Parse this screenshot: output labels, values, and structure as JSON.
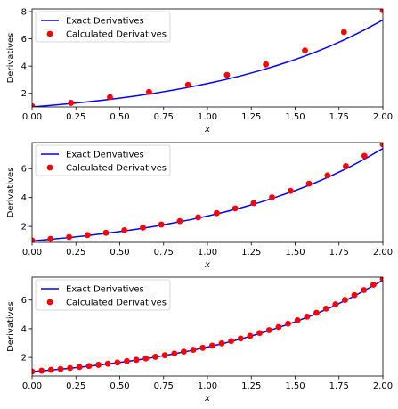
{
  "chart_data": [
    {
      "type": "line",
      "xlabel": "x",
      "ylabel": "Derivatives",
      "xlim": [
        0,
        2
      ],
      "ylim": [
        1.0,
        8.2
      ],
      "xticks": [
        "0.00",
        "0.25",
        "0.50",
        "0.75",
        "1.00",
        "1.25",
        "1.50",
        "1.75",
        "2.00"
      ],
      "xtick_values": [
        0,
        0.25,
        0.5,
        0.75,
        1.0,
        1.25,
        1.5,
        1.75,
        2.0
      ],
      "yticks": [
        "2",
        "4",
        "6",
        "8"
      ],
      "ytick_values": [
        2,
        4,
        6,
        8
      ],
      "grid": false,
      "legend_position": "top-left",
      "series": [
        {
          "name": "Exact Derivatives",
          "style": "line",
          "color": "#0000ff",
          "x": [
            0,
            0.1,
            0.2,
            0.3,
            0.4,
            0.5,
            0.6,
            0.7,
            0.8,
            0.9,
            1.0,
            1.1,
            1.2,
            1.3,
            1.4,
            1.5,
            1.6,
            1.7,
            1.8,
            1.9,
            2.0
          ],
          "y": [
            1.0,
            1.11,
            1.22,
            1.35,
            1.49,
            1.65,
            1.82,
            2.01,
            2.23,
            2.46,
            2.72,
            3.0,
            3.32,
            3.67,
            4.06,
            4.48,
            4.95,
            5.47,
            6.05,
            6.69,
            7.39
          ]
        },
        {
          "name": "Calculated Derivatives",
          "style": "points",
          "color": "#ff0000",
          "x": [
            0,
            0.222,
            0.444,
            0.667,
            0.889,
            1.111,
            1.333,
            1.556,
            1.778,
            2.0
          ],
          "y": [
            1.05,
            1.3,
            1.72,
            2.1,
            2.62,
            3.35,
            4.12,
            5.15,
            6.5,
            8.1
          ]
        }
      ]
    },
    {
      "type": "line",
      "xlabel": "x",
      "ylabel": "Derivatives",
      "xlim": [
        0,
        2
      ],
      "ylim": [
        0.9,
        7.8
      ],
      "xticks": [
        "0.00",
        "0.25",
        "0.50",
        "0.75",
        "1.00",
        "1.25",
        "1.50",
        "1.75",
        "2.00"
      ],
      "xtick_values": [
        0,
        0.25,
        0.5,
        0.75,
        1.0,
        1.25,
        1.5,
        1.75,
        2.0
      ],
      "yticks": [
        "2",
        "4",
        "6"
      ],
      "ytick_values": [
        2,
        4,
        6
      ],
      "grid": false,
      "legend_position": "top-left",
      "series": [
        {
          "name": "Exact Derivatives",
          "style": "line",
          "color": "#0000ff",
          "x": [
            0,
            0.1,
            0.2,
            0.3,
            0.4,
            0.5,
            0.6,
            0.7,
            0.8,
            0.9,
            1.0,
            1.1,
            1.2,
            1.3,
            1.4,
            1.5,
            1.6,
            1.7,
            1.8,
            1.9,
            2.0
          ],
          "y": [
            1.0,
            1.11,
            1.22,
            1.35,
            1.49,
            1.65,
            1.82,
            2.01,
            2.23,
            2.46,
            2.72,
            3.0,
            3.32,
            3.67,
            4.06,
            4.48,
            4.95,
            5.47,
            6.05,
            6.69,
            7.39
          ]
        },
        {
          "name": "Calculated Derivatives",
          "style": "points",
          "color": "#ff0000",
          "x": [
            0,
            0.105,
            0.211,
            0.316,
            0.421,
            0.526,
            0.632,
            0.737,
            0.842,
            0.947,
            1.053,
            1.158,
            1.263,
            1.368,
            1.474,
            1.579,
            1.684,
            1.789,
            1.895,
            2.0
          ],
          "y": [
            1.03,
            1.14,
            1.27,
            1.41,
            1.56,
            1.74,
            1.92,
            2.13,
            2.37,
            2.63,
            2.92,
            3.25,
            3.61,
            4.01,
            4.46,
            4.96,
            5.53,
            6.17,
            6.88,
            7.68
          ]
        }
      ]
    },
    {
      "type": "line",
      "xlabel": "x",
      "ylabel": "Derivatives",
      "xlim": [
        0,
        2
      ],
      "ylim": [
        0.7,
        7.6
      ],
      "xticks": [
        "0.00",
        "0.25",
        "0.50",
        "0.75",
        "1.00",
        "1.25",
        "1.50",
        "1.75",
        "2.00"
      ],
      "xtick_values": [
        0,
        0.25,
        0.5,
        0.75,
        1.0,
        1.25,
        1.5,
        1.75,
        2.0
      ],
      "yticks": [
        "2",
        "4",
        "6"
      ],
      "ytick_values": [
        2,
        4,
        6
      ],
      "grid": false,
      "legend_position": "top-left",
      "series": [
        {
          "name": "Exact Derivatives",
          "style": "line",
          "color": "#0000ff",
          "x": [
            0,
            0.1,
            0.2,
            0.3,
            0.4,
            0.5,
            0.6,
            0.7,
            0.8,
            0.9,
            1.0,
            1.1,
            1.2,
            1.3,
            1.4,
            1.5,
            1.6,
            1.7,
            1.8,
            1.9,
            2.0
          ],
          "y": [
            1.0,
            1.11,
            1.22,
            1.35,
            1.49,
            1.65,
            1.82,
            2.01,
            2.23,
            2.46,
            2.72,
            3.0,
            3.32,
            3.67,
            4.06,
            4.48,
            4.95,
            5.47,
            6.05,
            6.69,
            7.39
          ]
        },
        {
          "name": "Calculated Derivatives",
          "style": "points",
          "color": "#ff0000",
          "x": [
            0,
            0.0541,
            0.1081,
            0.1622,
            0.2162,
            0.2703,
            0.3243,
            0.3784,
            0.4324,
            0.4865,
            0.5405,
            0.5946,
            0.6486,
            0.7027,
            0.7568,
            0.8108,
            0.8649,
            0.9189,
            0.973,
            1.027,
            1.0811,
            1.1351,
            1.1892,
            1.2432,
            1.2973,
            1.3514,
            1.4054,
            1.4595,
            1.5135,
            1.5676,
            1.6216,
            1.6757,
            1.7297,
            1.7838,
            1.8378,
            1.8919,
            1.9459,
            2.0
          ],
          "y": [
            1.01,
            1.07,
            1.13,
            1.19,
            1.26,
            1.33,
            1.4,
            1.48,
            1.56,
            1.64,
            1.74,
            1.83,
            1.93,
            2.04,
            2.15,
            2.27,
            2.4,
            2.53,
            2.67,
            2.82,
            2.98,
            3.14,
            3.32,
            3.5,
            3.7,
            3.9,
            4.12,
            4.35,
            4.59,
            4.84,
            5.11,
            5.4,
            5.7,
            6.01,
            6.35,
            6.7,
            7.07,
            7.47
          ]
        }
      ]
    }
  ]
}
